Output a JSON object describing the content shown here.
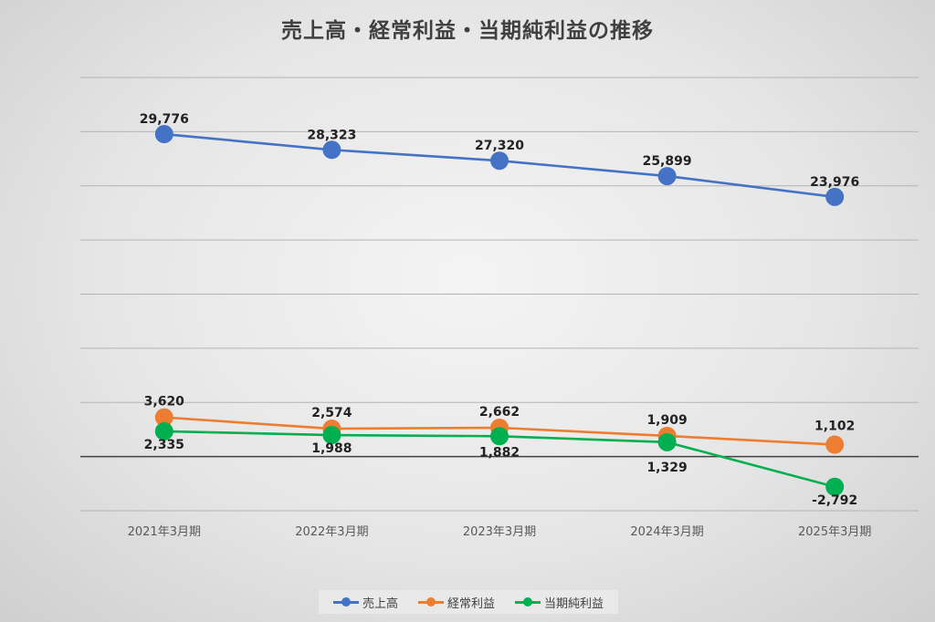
{
  "chart_data": {
    "type": "line",
    "title": "売上高・経常利益・当期純利益の推移",
    "categories": [
      "2021年3月期",
      "2022年3月期",
      "2023年3月期",
      "2024年3月期",
      "2025年3月期"
    ],
    "series": [
      {
        "name": "売上高",
        "color": "#4472c4",
        "values": [
          29776,
          28323,
          27320,
          25899,
          23976
        ],
        "labels": [
          "29,776",
          "28,323",
          "27,320",
          "25,899",
          "23,976"
        ]
      },
      {
        "name": "経常利益",
        "color": "#ed7d31",
        "values": [
          3620,
          2574,
          2662,
          1909,
          1102
        ],
        "labels": [
          "3,620",
          "2,574",
          "2,662",
          "1,909",
          "1,102"
        ]
      },
      {
        "name": "当期純利益",
        "color": "#00b050",
        "values": [
          2335,
          1988,
          1882,
          1329,
          -2792
        ],
        "labels": [
          "2,335",
          "1,988",
          "1,882",
          "1,329",
          "-2,792"
        ]
      }
    ],
    "ylim": [
      -5000,
      35000
    ],
    "grid": true,
    "y_tick_labels_shown": false,
    "legend": "bottom"
  }
}
